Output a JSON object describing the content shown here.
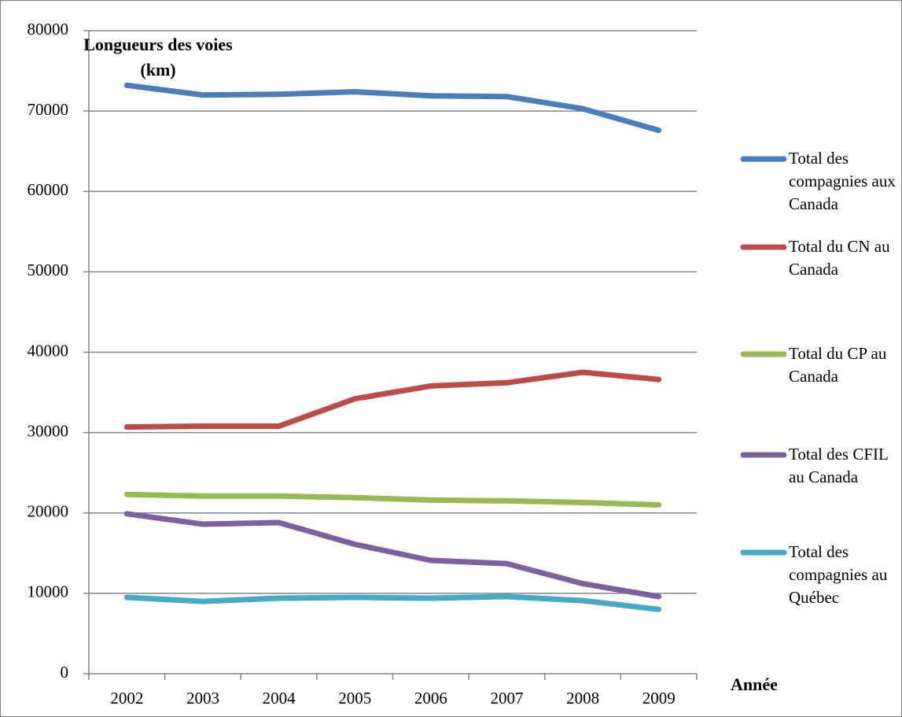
{
  "chart_data": {
    "type": "line",
    "y_label": "Longueurs des voies (km)",
    "x_label": "Année",
    "categories": [
      "2002",
      "2003",
      "2004",
      "2005",
      "2006",
      "2007",
      "2008",
      "2009"
    ],
    "series": [
      {
        "name": "Total des compagnies aux Canada",
        "color": "#4a7ebb",
        "values": [
          73200,
          72000,
          72100,
          72400,
          71900,
          71800,
          70300,
          67600
        ]
      },
      {
        "name": "Total du CN au Canada",
        "color": "#be4b48",
        "values": [
          30700,
          30800,
          30800,
          34200,
          35800,
          36200,
          37500,
          36600
        ]
      },
      {
        "name": "Total du CP au Canada",
        "color": "#98b954",
        "values": [
          22300,
          22100,
          22100,
          21900,
          21600,
          21500,
          21300,
          21000
        ]
      },
      {
        "name": "Total des CFIL au Canada",
        "color": "#7d60a0",
        "values": [
          19900,
          18600,
          18800,
          16100,
          14100,
          13700,
          11200,
          9600
        ]
      },
      {
        "name": "Total des compagnies au Québec",
        "color": "#46aac5",
        "values": [
          9500,
          9000,
          9400,
          9500,
          9400,
          9600,
          9100,
          8000
        ]
      }
    ],
    "ylim": [
      0,
      80000
    ],
    "yticks": [
      0,
      10000,
      20000,
      30000,
      40000,
      50000,
      60000,
      70000,
      80000
    ],
    "grid": true,
    "legend": "right"
  }
}
